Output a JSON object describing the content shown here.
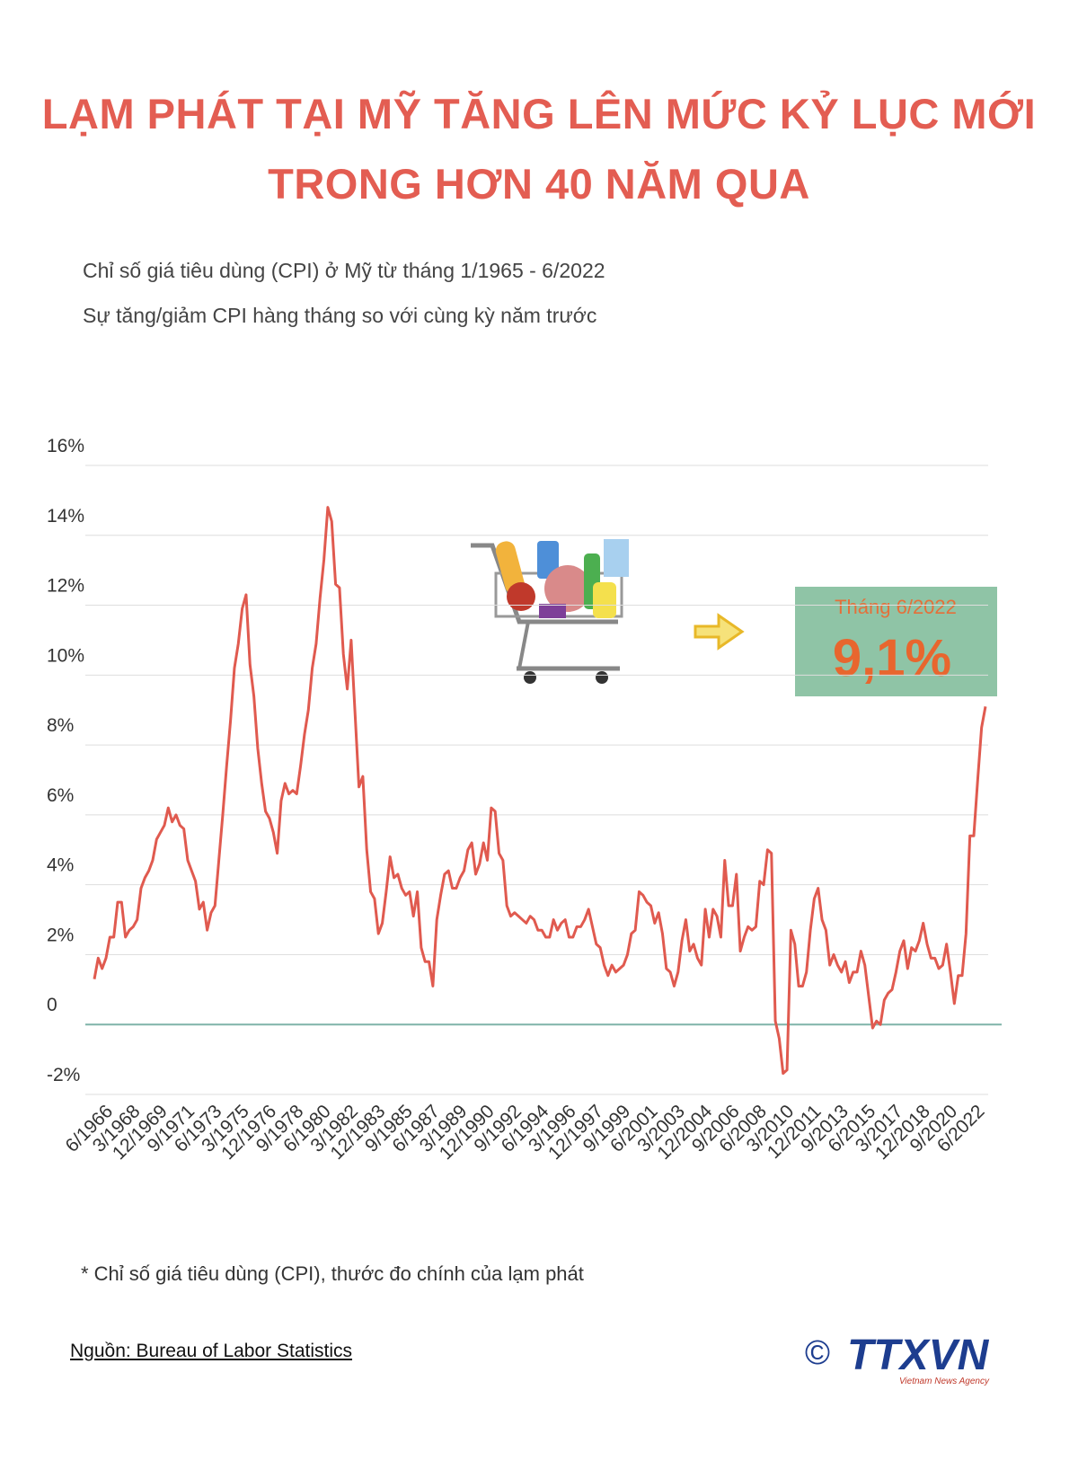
{
  "chart_data": {
    "type": "line",
    "title_line1": "LẠM PHÁT TẠI MỸ TĂNG LÊN MỨC KỶ LỤC MỚI",
    "title_line2": "TRONG HƠN 40 NĂM QUA",
    "subtitle": "Chỉ số giá tiêu dùng (CPI) ở Mỹ từ tháng 1/1965 - 6/2022",
    "subtitle2": "Sự tăng/giảm CPI hàng tháng so với cùng kỳ năm trước",
    "annotation": {
      "label": "Tháng 6/2022",
      "value_text": "9,1%"
    },
    "footnote": "* Chỉ số giá tiêu dùng (CPI), thước đo chính của lạm phát",
    "source": "Nguồn: Bureau of Labor Statistics",
    "logo": "TTXVN",
    "logo_sub": "Vietnam News Agency",
    "copyright": "©",
    "color": "#e05a4f",
    "grid": true,
    "grid_color": "#dedede",
    "zero_line_color": "#7fb3a8",
    "ylim": [
      -2,
      16
    ],
    "yticks": [
      {
        "value": -2,
        "label": "-2%"
      },
      0,
      {
        "value": 2,
        "label": "2%"
      },
      {
        "value": 4,
        "label": "4%"
      },
      {
        "value": 6,
        "label": "6%"
      },
      {
        "value": 8,
        "label": "8%"
      },
      {
        "value": 10,
        "label": "10%"
      },
      {
        "value": 12,
        "label": "12%"
      },
      {
        "value": 14,
        "label": "14%"
      },
      {
        "value": 16,
        "label": "16%"
      }
    ],
    "categories": [
      null,
      null,
      null,
      null,
      null,
      "6/1966",
      null,
      null,
      null,
      null,
      null,
      null,
      "3/1968",
      null,
      null,
      null,
      null,
      null,
      null,
      "12/1969",
      null,
      null,
      null,
      null,
      null,
      null,
      "9/1971",
      null,
      null,
      null,
      null,
      null,
      null,
      "6/1973",
      null,
      null,
      null,
      null,
      null,
      null,
      "3/1975",
      null,
      null,
      null,
      null,
      null,
      null,
      "12/1976",
      null,
      null,
      null,
      null,
      null,
      null,
      "9/1978",
      null,
      null,
      null,
      null,
      null,
      null,
      "6/1980",
      null,
      null,
      null,
      null,
      null,
      null,
      "3/1982",
      null,
      null,
      null,
      null,
      null,
      null,
      "12/1983",
      null,
      null,
      null,
      null,
      null,
      null,
      "9/1985",
      null,
      null,
      null,
      null,
      null,
      null,
      "6/1987",
      null,
      null,
      null,
      null,
      null,
      null,
      "3/1989",
      null,
      null,
      null,
      null,
      null,
      null,
      "12/1990",
      null,
      null,
      null,
      null,
      null,
      null,
      "9/1992",
      null,
      null,
      null,
      null,
      null,
      null,
      "6/1994",
      null,
      null,
      null,
      null,
      null,
      null,
      "3/1996",
      null,
      null,
      null,
      null,
      null,
      null,
      "12/1997",
      null,
      null,
      null,
      null,
      null,
      null,
      "9/1999",
      null,
      null,
      null,
      null,
      null,
      null,
      "6/2001",
      null,
      null,
      null,
      null,
      null,
      null,
      "3/2003",
      null,
      null,
      null,
      null,
      null,
      null,
      "12/2004",
      null,
      null,
      null,
      null,
      null,
      null,
      "9/2006",
      null,
      null,
      null,
      null,
      null,
      null,
      "6/2008",
      null,
      null,
      null,
      null,
      null,
      null,
      "3/2010",
      null,
      null,
      null,
      null,
      null,
      null,
      "12/2011",
      null,
      null,
      null,
      null,
      null,
      null,
      "9/2013",
      null,
      null,
      null,
      null,
      null,
      null,
      "6/2015",
      null,
      null,
      null,
      null,
      null,
      null,
      "3/2017",
      null,
      null,
      null,
      null,
      null,
      null,
      "12/2018",
      null,
      null,
      null,
      null,
      null,
      null,
      "9/2020",
      null,
      null,
      null,
      null,
      null,
      null,
      "6/2022"
    ],
    "values": [
      1.3,
      1.9,
      1.6,
      1.9,
      2.5,
      2.5,
      3.5,
      3.5,
      2.5,
      2.7,
      2.8,
      3.0,
      3.9,
      4.2,
      4.4,
      4.7,
      5.3,
      5.5,
      5.7,
      6.2,
      5.8,
      6.0,
      5.7,
      5.6,
      4.7,
      4.4,
      4.1,
      3.3,
      3.5,
      2.7,
      3.2,
      3.4,
      4.7,
      6.0,
      7.4,
      8.7,
      10.2,
      10.9,
      11.9,
      12.3,
      10.3,
      9.4,
      7.9,
      6.9,
      6.1,
      5.9,
      5.5,
      4.9,
      6.4,
      6.9,
      6.6,
      6.7,
      6.6,
      7.4,
      8.3,
      9.0,
      10.2,
      10.9,
      12.2,
      13.3,
      14.8,
      14.4,
      12.6,
      12.5,
      10.6,
      9.6,
      11.0,
      8.9,
      6.8,
      7.1,
      5.0,
      3.8,
      3.6,
      2.6,
      2.9,
      3.8,
      4.8,
      4.2,
      4.3,
      3.9,
      3.7,
      3.8,
      3.1,
      3.8,
      2.2,
      1.8,
      1.8,
      1.1,
      3.0,
      3.7,
      4.3,
      4.4,
      3.9,
      3.9,
      4.2,
      4.4,
      5.0,
      5.2,
      4.3,
      4.6,
      5.2,
      4.7,
      6.2,
      6.1,
      4.9,
      4.7,
      3.4,
      3.1,
      3.2,
      3.1,
      3.0,
      2.9,
      3.1,
      3.0,
      2.7,
      2.7,
      2.5,
      2.5,
      3.0,
      2.7,
      2.9,
      3.0,
      2.5,
      2.5,
      2.8,
      2.8,
      3.0,
      3.3,
      2.8,
      2.3,
      2.2,
      1.7,
      1.4,
      1.7,
      1.5,
      1.6,
      1.7,
      2.0,
      2.6,
      2.7,
      3.8,
      3.7,
      3.5,
      3.4,
      2.9,
      3.2,
      2.6,
      1.6,
      1.5,
      1.1,
      1.5,
      2.4,
      3.0,
      2.1,
      2.3,
      1.9,
      1.7,
      3.3,
      2.5,
      3.3,
      3.1,
      2.5,
      4.7,
      3.4,
      3.4,
      4.3,
      2.1,
      2.5,
      2.8,
      2.7,
      2.8,
      4.1,
      4.0,
      5.0,
      4.9,
      0.1,
      -0.4,
      -1.4,
      -1.3,
      2.7,
      2.3,
      1.1,
      1.1,
      1.5,
      2.7,
      3.6,
      3.9,
      3.0,
      2.7,
      1.7,
      2.0,
      1.7,
      1.5,
      1.8,
      1.2,
      1.5,
      1.5,
      2.1,
      1.7,
      0.8,
      -0.1,
      0.1,
      0.0,
      0.7,
      0.9,
      1.0,
      1.5,
      2.1,
      2.4,
      1.6,
      2.2,
      2.1,
      2.4,
      2.9,
      2.3,
      1.9,
      1.9,
      1.6,
      1.7,
      2.3,
      1.5,
      0.6,
      1.4,
      1.4,
      2.6,
      5.4,
      5.4,
      7.0,
      8.5,
      9.1
    ]
  }
}
